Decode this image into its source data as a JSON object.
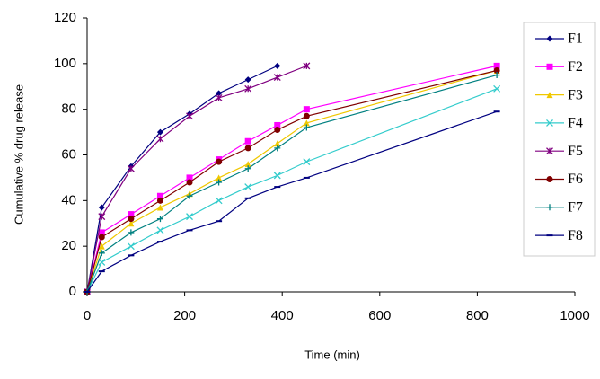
{
  "chart_data": {
    "type": "line",
    "xlabel": "Time (min)",
    "ylabel": "Cumulative % drug release",
    "x": [
      0,
      30,
      90,
      150,
      210,
      270,
      330,
      390,
      450,
      840
    ],
    "xlim": [
      0,
      1000
    ],
    "xticks": [
      0,
      200,
      400,
      600,
      800,
      1000
    ],
    "ylim": [
      0,
      120
    ],
    "yticks": [
      0,
      20,
      40,
      60,
      80,
      100,
      120
    ],
    "grid": false,
    "legend": "right",
    "series": [
      {
        "name": "F1",
        "color": "#000080",
        "marker": "diamond",
        "values": [
          0,
          37,
          55,
          70,
          78,
          87,
          93,
          99,
          null,
          null
        ]
      },
      {
        "name": "F2",
        "color": "#ff00ff",
        "marker": "square",
        "values": [
          0,
          26,
          34,
          42,
          50,
          58,
          66,
          73,
          80,
          99
        ]
      },
      {
        "name": "F3",
        "color": "#f0c800",
        "marker": "triangle",
        "values": [
          0,
          20,
          30,
          37,
          43,
          50,
          56,
          65,
          74,
          97
        ]
      },
      {
        "name": "F4",
        "color": "#33cccc",
        "marker": "x",
        "values": [
          0,
          13,
          20,
          27,
          33,
          40,
          46,
          51,
          57,
          89
        ]
      },
      {
        "name": "F5",
        "color": "#800080",
        "marker": "star",
        "values": [
          0,
          33,
          54,
          67,
          77,
          85,
          89,
          94,
          99,
          null
        ]
      },
      {
        "name": "F6",
        "color": "#800000",
        "marker": "circle",
        "values": [
          0,
          24,
          32,
          40,
          48,
          57,
          63,
          71,
          77,
          97
        ]
      },
      {
        "name": "F7",
        "color": "#008080",
        "marker": "plus",
        "values": [
          0,
          17,
          26,
          32,
          42,
          48,
          54,
          63,
          72,
          95
        ]
      },
      {
        "name": "F8",
        "color": "#000080",
        "marker": "dash",
        "values": [
          0,
          9,
          16,
          22,
          27,
          31,
          41,
          46,
          50,
          79
        ]
      }
    ]
  }
}
